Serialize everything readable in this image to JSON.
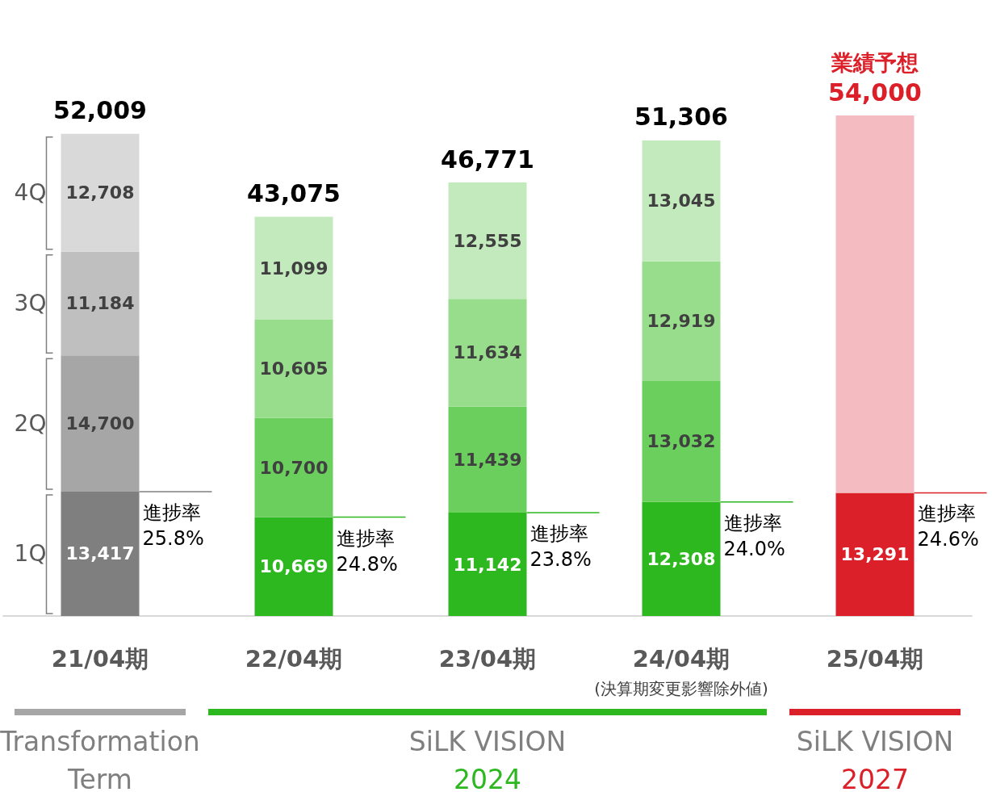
{
  "chart_data": {
    "type": "bar",
    "stacked": true,
    "categories": [
      "21/04期",
      "22/04期",
      "23/04期",
      "24/04期",
      "25/04期"
    ],
    "series": [
      {
        "name": "1Q",
        "colors": [
          "#7f7f7f",
          "#2db81f",
          "#2db81f",
          "#2db81f",
          "#dc2029"
        ],
        "values": [
          13417,
          10669,
          11142,
          12308,
          13291
        ],
        "value_labels": [
          "13,417",
          "10,669",
          "11,142",
          "12,308",
          "13,291"
        ]
      },
      {
        "name": "2Q",
        "colors": [
          "#a6a6a6",
          "#6bcf5e",
          "#6bcf5e",
          "#6bcf5e",
          null
        ],
        "values": [
          14700,
          10700,
          11439,
          13032,
          null
        ],
        "value_labels": [
          "14,700",
          "10,700",
          "11,439",
          "13,032",
          null
        ]
      },
      {
        "name": "3Q",
        "colors": [
          "#bfbfbf",
          "#98dd8c",
          "#98dd8c",
          "#98dd8c",
          null
        ],
        "values": [
          11184,
          10605,
          11634,
          12919,
          null
        ],
        "value_labels": [
          "11,184",
          "10,605",
          "11,634",
          "12,919",
          null
        ]
      },
      {
        "name": "4Q",
        "colors": [
          "#d9d9d9",
          "#c3eabc",
          "#c3eabc",
          "#c3eabc",
          null
        ],
        "values": [
          12708,
          11099,
          12555,
          13045,
          null
        ],
        "value_labels": [
          "12,708",
          "11,099",
          "12,555",
          "13,045",
          null
        ]
      },
      {
        "colors": [
          null,
          null,
          null,
          null,
          "#f4bcc0"
        ],
        "values": [
          null,
          null,
          null,
          null,
          40709
        ]
      }
    ],
    "totals": [
      "52,009",
      "43,075",
      "46,771",
      "51,306",
      "54,000"
    ],
    "annotations": [
      {
        "text": "進捗率\n25.8%",
        "x": "21/04期",
        "y": 13417
      },
      {
        "text": "進捗率\n24.8%",
        "x": "22/04期",
        "y": 10669
      },
      {
        "text": "進捗率\n23.8%",
        "x": "23/04期",
        "y": 11142
      },
      {
        "text": "進捗率\n24.0%",
        "x": "24/04期",
        "y": 12308
      },
      {
        "text": "進捗率\n24.6%",
        "x": "25/04期",
        "y": 13291
      },
      {
        "text": "業績予想",
        "x": "25/04期",
        "y": 54000
      },
      "(決算期変更影響除外値)",
      "Transformation\nTerm",
      "SiLK VISION\n2024",
      "SiLK VISION\n2027"
    ],
    "grid": false,
    "legend": false,
    "tick_labels": "x"
  }
}
